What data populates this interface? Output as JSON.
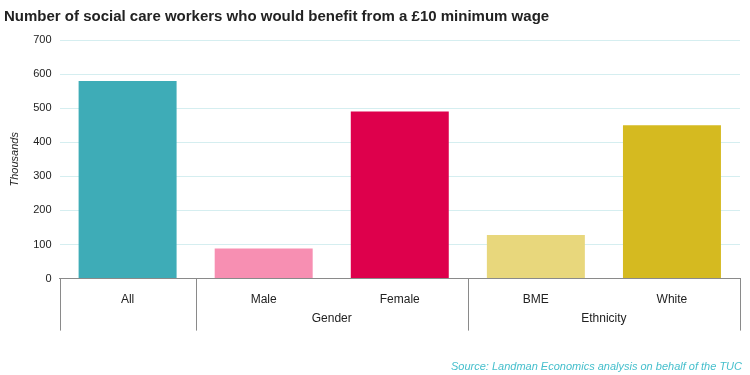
{
  "chart_data": {
    "type": "bar",
    "title": "Number of social care workers who would benefit from a £10 minimum wage",
    "y_label": "Thousands",
    "categories": [
      "All",
      "Male",
      "Female",
      "BME",
      "White"
    ],
    "category_groups": [
      null,
      "Gender",
      "Gender",
      "Ethnicity",
      "Ethnicity"
    ],
    "values": [
      580,
      88,
      490,
      128,
      450
    ],
    "colors": [
      "#3eacb7",
      "#f78fb2",
      "#de004c",
      "#e8d77c",
      "#d5ba20"
    ],
    "ylim": [
      0,
      700
    ],
    "yticks": [
      0,
      100,
      200,
      300,
      400,
      500,
      600,
      700
    ],
    "grid": true,
    "source": "Source: Landman Economics analysis on behalf of the TUC"
  }
}
